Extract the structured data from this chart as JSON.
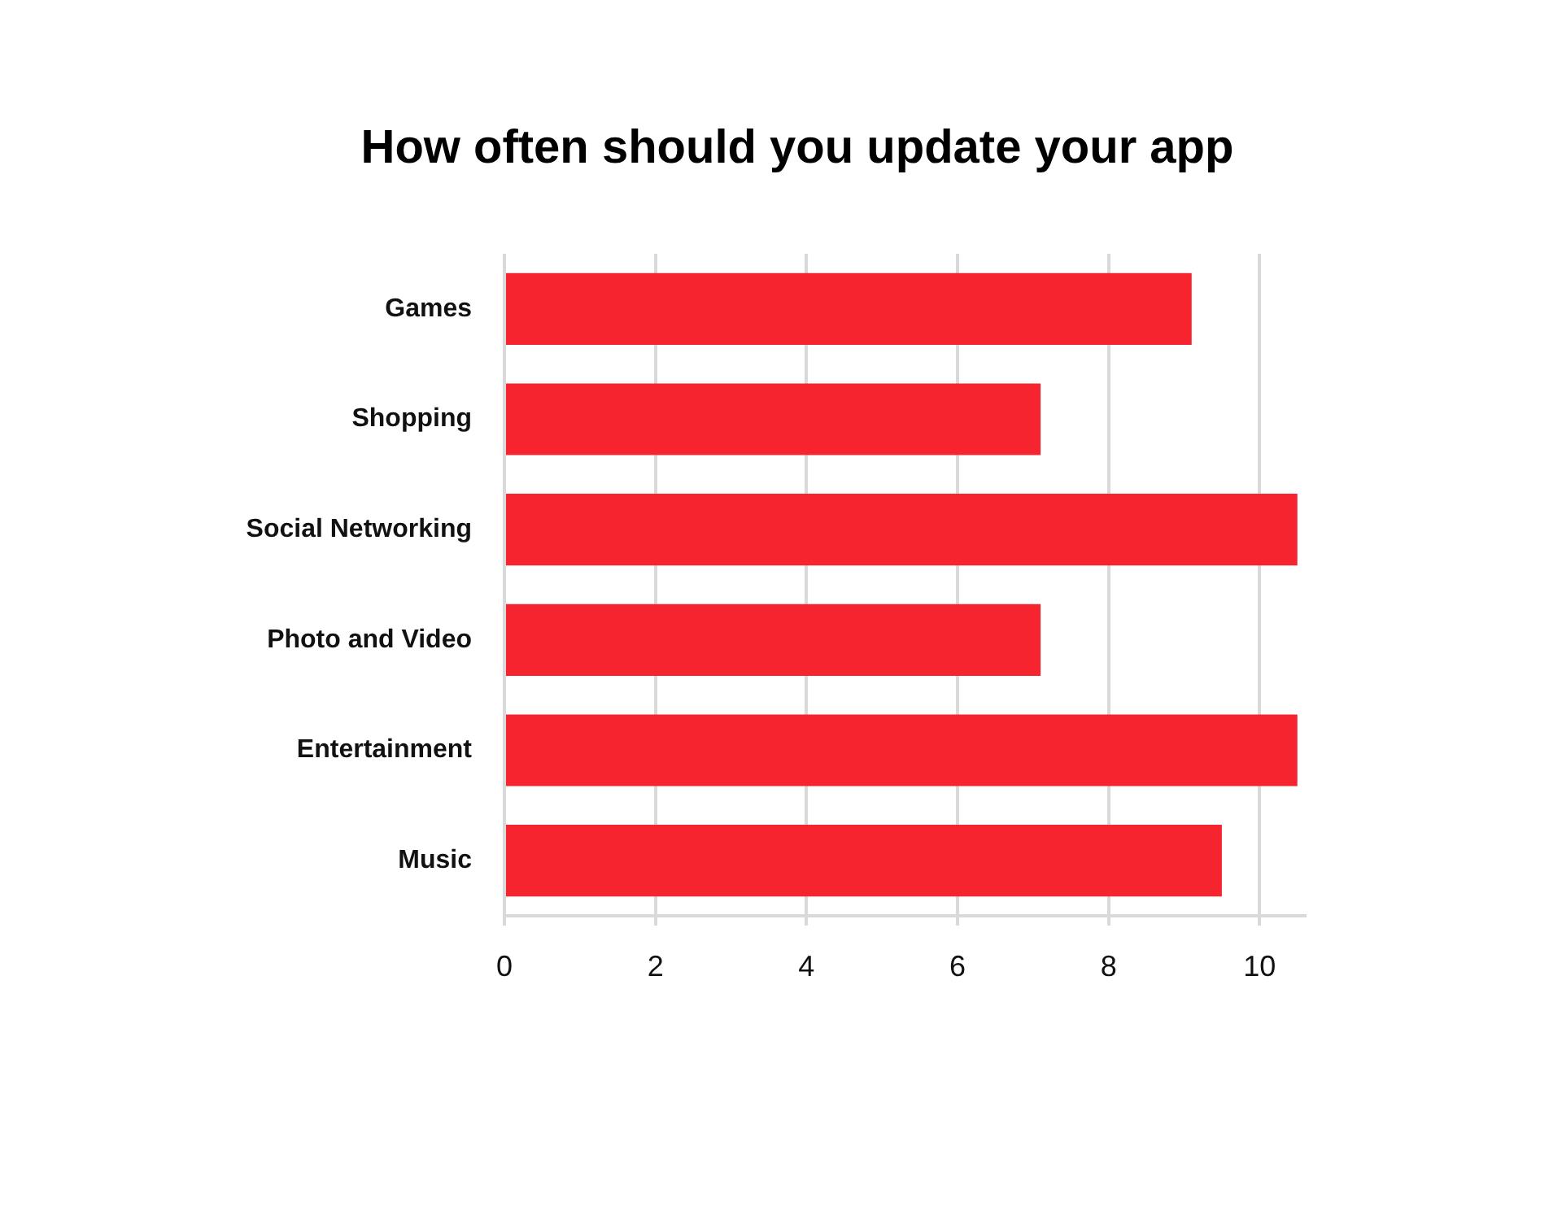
{
  "chart_data": {
    "type": "bar",
    "orientation": "horizontal",
    "title": "How often should you update your app",
    "categories": [
      "Games",
      "Shopping",
      "Social Networking",
      "Photo and Video",
      "Entertainment",
      "Music"
    ],
    "values": [
      9.1,
      7.1,
      10.5,
      7.1,
      10.5,
      9.5
    ],
    "color": "#f5242f",
    "xlim": [
      0,
      10.6
    ],
    "xticks": [
      0,
      2,
      4,
      6,
      8,
      10
    ],
    "grid": "x"
  }
}
